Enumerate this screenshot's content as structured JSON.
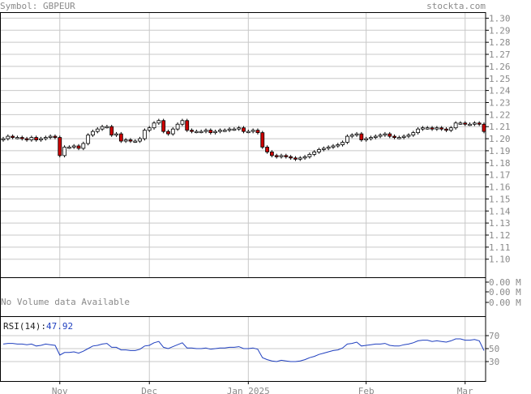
{
  "header": {
    "symbol_label": "Symbol: GBPEUR",
    "site": "stockta.com"
  },
  "colors": {
    "grid": "#c8c8c8",
    "frame": "#000000",
    "up": "#ffffff",
    "down": "#cc0000",
    "rsi": "#1f3fbf",
    "label": "#8a8a8a"
  },
  "volume": {
    "message": "No Volume data Available",
    "ticks": [
      "0.00 M",
      "0.00 M",
      "0.00 M"
    ]
  },
  "rsi": {
    "label": "RSI(14):",
    "value": "47.92",
    "ticks": [
      "70",
      "50",
      "30"
    ]
  },
  "chart_data": {
    "type": "candlestick",
    "price_ticks": [
      "1.30",
      "1.29",
      "1.28",
      "1.27",
      "1.26",
      "1.25",
      "1.24",
      "1.23",
      "1.22",
      "1.21",
      "1.20",
      "1.19",
      "1.18",
      "1.17",
      "1.16",
      "1.15",
      "1.14",
      "1.13",
      "1.12",
      "1.11",
      "1.10"
    ],
    "price_range": [
      1.085,
      1.305
    ],
    "x_labels": [
      {
        "label": "Nov",
        "index": 12
      },
      {
        "label": "Dec",
        "index": 31
      },
      {
        "label": "Jan 2025",
        "index": 52
      },
      {
        "label": "Feb",
        "index": 77
      },
      {
        "label": "Mar",
        "index": 98
      }
    ],
    "num_bars": 103,
    "closes": [
      1.2,
      1.202,
      1.201,
      1.201,
      1.2,
      1.199,
      1.201,
      1.199,
      1.2,
      1.201,
      1.202,
      1.201,
      1.186,
      1.193,
      1.193,
      1.194,
      1.192,
      1.196,
      1.203,
      1.206,
      1.208,
      1.21,
      1.21,
      1.203,
      1.204,
      1.198,
      1.199,
      1.198,
      1.198,
      1.2,
      1.207,
      1.209,
      1.213,
      1.215,
      1.206,
      1.204,
      1.208,
      1.212,
      1.215,
      1.207,
      1.206,
      1.206,
      1.206,
      1.207,
      1.205,
      1.206,
      1.207,
      1.207,
      1.208,
      1.208,
      1.209,
      1.206,
      1.206,
      1.207,
      1.205,
      1.193,
      1.189,
      1.186,
      1.185,
      1.186,
      1.185,
      1.184,
      1.183,
      1.184,
      1.185,
      1.187,
      1.189,
      1.191,
      1.192,
      1.193,
      1.194,
      1.195,
      1.197,
      1.202,
      1.203,
      1.204,
      1.199,
      1.2,
      1.201,
      1.202,
      1.203,
      1.204,
      1.202,
      1.201,
      1.201,
      1.202,
      1.203,
      1.205,
      1.208,
      1.209,
      1.209,
      1.208,
      1.209,
      1.208,
      1.207,
      1.209,
      1.213,
      1.213,
      1.212,
      1.212,
      1.213,
      1.212,
      1.206
    ],
    "rsi_values": [
      57,
      58,
      58,
      57,
      57,
      56,
      57,
      54,
      55,
      57,
      56,
      55,
      40,
      44,
      44,
      45,
      43,
      46,
      50,
      54,
      55,
      57,
      58,
      52,
      52,
      48,
      48,
      47,
      47,
      49,
      54,
      55,
      59,
      61,
      52,
      50,
      53,
      56,
      59,
      51,
      51,
      50,
      50,
      51,
      49,
      50,
      51,
      51,
      52,
      52,
      53,
      50,
      50,
      51,
      49,
      36,
      33,
      31,
      30,
      32,
      31,
      30,
      30,
      31,
      33,
      36,
      38,
      41,
      43,
      45,
      47,
      48,
      51,
      57,
      58,
      60,
      54,
      55,
      56,
      57,
      57,
      58,
      55,
      54,
      54,
      56,
      57,
      59,
      62,
      63,
      63,
      61,
      62,
      61,
      60,
      62,
      65,
      65,
      63,
      63,
      64,
      62,
      47
    ]
  }
}
